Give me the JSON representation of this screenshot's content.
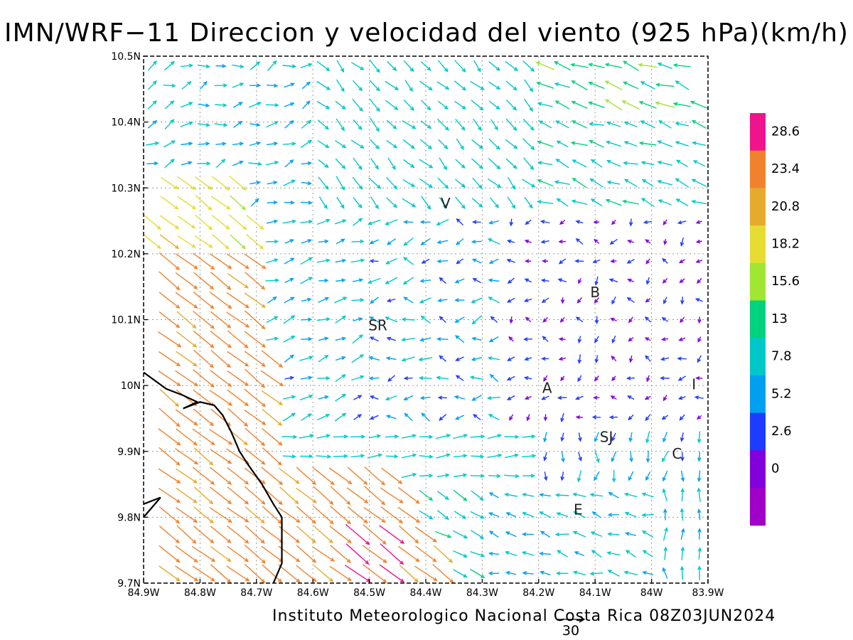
{
  "title": "IMN/WRF−11 Direccion y velocidad del viento (925 hPa)(km/h)",
  "footer": "Instituto Meteorologico Nacional Costa Rica 08Z03JUN2024",
  "reference_vector": {
    "label": "30",
    "speed": 30
  },
  "axes": {
    "lon_ticks": [
      "84.9W",
      "84.8W",
      "84.7W",
      "84.6W",
      "84.5W",
      "84.4W",
      "84.3W",
      "84.2W",
      "84.1W",
      "84W",
      "83.9W"
    ],
    "lat_ticks": [
      "10.5N",
      "10.4N",
      "10.3N",
      "10.2N",
      "10.1N",
      "10N",
      "9.9N",
      "9.8N",
      "9.7N"
    ],
    "lon_range": [
      -84.9,
      -83.9
    ],
    "lat_range": [
      9.7,
      10.5
    ],
    "grid": true
  },
  "colorbar": {
    "levels": [
      "28.6",
      "23.4",
      "20.8",
      "18.2",
      "15.6",
      "13",
      "7.8",
      "5.2",
      "2.6",
      "0"
    ],
    "colors_top_to_bottom": [
      "#f0148c",
      "#f0822d",
      "#e6aa2d",
      "#e6dc32",
      "#a0e632",
      "#00d27d",
      "#00c8c8",
      "#00a0f0",
      "#1e3cff",
      "#8200dc",
      "#a000c8"
    ]
  },
  "place_labels": [
    {
      "text": "V",
      "lon": -84.365,
      "lat": 10.275
    },
    {
      "text": "B",
      "lon": -84.1,
      "lat": 10.14
    },
    {
      "text": "SR",
      "lon": -84.485,
      "lat": 10.09
    },
    {
      "text": "A",
      "lon": -84.185,
      "lat": 9.995
    },
    {
      "text": "I",
      "lon": -83.925,
      "lat": 10.0
    },
    {
      "text": "SJ",
      "lon": -84.08,
      "lat": 9.92
    },
    {
      "text": "C",
      "lon": -83.955,
      "lat": 9.895
    },
    {
      "text": "E",
      "lon": -84.13,
      "lat": 9.81
    }
  ],
  "coastline": [
    [
      -84.9,
      10.02
    ],
    [
      -84.86,
      9.995
    ],
    [
      -84.83,
      9.985
    ],
    [
      -84.805,
      9.975
    ],
    [
      -84.83,
      9.965
    ],
    [
      -84.8,
      9.975
    ],
    [
      -84.775,
      9.97
    ],
    [
      -84.76,
      9.955
    ],
    [
      -84.745,
      9.93
    ],
    [
      -84.73,
      9.9
    ],
    [
      -84.715,
      9.88
    ],
    [
      -84.69,
      9.85
    ],
    [
      -84.67,
      9.82
    ],
    [
      -84.655,
      9.8
    ],
    [
      -84.655,
      9.76
    ],
    [
      -84.655,
      9.73
    ],
    [
      -84.67,
      9.7
    ]
  ],
  "coastline2": [
    [
      -84.9,
      9.82
    ],
    [
      -84.87,
      9.83
    ],
    [
      -84.9,
      9.8
    ]
  ],
  "wind_field": {
    "regions": [
      {
        "name": "southwest-pacific",
        "dir_deg": 315,
        "speed": 24
      },
      {
        "name": "central-valley",
        "dir_deg": 90,
        "speed": 8
      },
      {
        "name": "caribbean-north",
        "dir_deg": 120,
        "speed": 11
      },
      {
        "name": "southeast",
        "dir_deg": 200,
        "speed": 8
      }
    ]
  }
}
